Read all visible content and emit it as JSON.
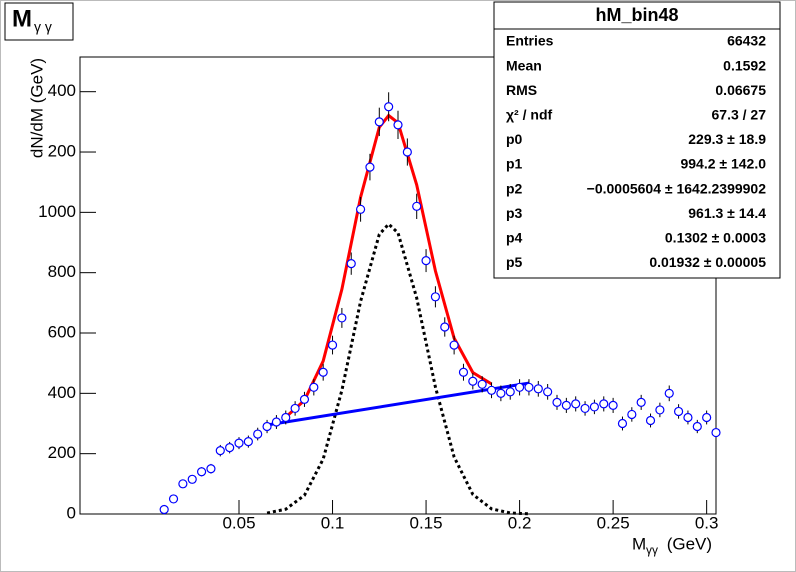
{
  "chart_data": {
    "type": "errorbar",
    "title": "M",
    "title_sub": "γ γ",
    "xlabel": "M",
    "xlabel_sub": "γγ",
    "xlabel_unit": " (GeV)",
    "ylabel": "dN/dM (GeV)",
    "xlim": [
      -0.035,
      0.305
    ],
    "ylim": [
      0,
      1515
    ],
    "xticks": [
      0.05,
      0.1,
      0.15,
      0.2,
      0.25,
      0.3
    ],
    "yticks": [
      0,
      200,
      400,
      600,
      800,
      1000,
      {
        "value": 1200,
        "label": "200"
      },
      {
        "value": 1400,
        "label": "400"
      }
    ],
    "x": [
      0.01,
      0.015,
      0.02,
      0.025,
      0.03,
      0.035,
      0.04,
      0.045,
      0.05,
      0.055,
      0.06,
      0.065,
      0.07,
      0.075,
      0.08,
      0.085,
      0.09,
      0.095,
      0.1,
      0.105,
      0.11,
      0.115,
      0.12,
      0.125,
      0.13,
      0.135,
      0.14,
      0.145,
      0.15,
      0.155,
      0.16,
      0.165,
      0.17,
      0.175,
      0.18,
      0.185,
      0.19,
      0.195,
      0.2,
      0.205,
      0.21,
      0.215,
      0.22,
      0.225,
      0.23,
      0.235,
      0.24,
      0.245,
      0.25,
      0.255,
      0.26,
      0.265,
      0.27,
      0.275,
      0.28,
      0.285,
      0.29,
      0.295,
      0.3,
      0.305
    ],
    "values": [
      15,
      50,
      100,
      115,
      140,
      150,
      210,
      220,
      235,
      240,
      265,
      290,
      305,
      320,
      350,
      380,
      420,
      470,
      560,
      650,
      830,
      1010,
      1150,
      1300,
      1350,
      1290,
      1200,
      1020,
      840,
      720,
      620,
      560,
      470,
      440,
      430,
      410,
      400,
      405,
      420,
      420,
      415,
      405,
      370,
      360,
      365,
      350,
      355,
      365,
      360,
      300,
      330,
      370,
      310,
      345,
      400,
      340,
      320,
      290,
      320,
      270
    ],
    "errors": [
      5,
      9,
      13,
      14,
      15,
      16,
      19,
      19,
      20,
      20,
      21,
      22,
      23,
      23,
      24,
      25,
      27,
      28,
      31,
      33,
      37,
      41,
      44,
      47,
      48,
      47,
      45,
      42,
      38,
      35,
      32,
      31,
      28,
      27,
      27,
      26,
      26,
      26,
      27,
      27,
      26,
      26,
      25,
      25,
      25,
      24,
      24,
      25,
      25,
      23,
      24,
      25,
      23,
      24,
      26,
      24,
      23,
      22,
      23,
      21
    ],
    "color": "#0000ff",
    "curves": [
      {
        "color": "#000000",
        "dashed": true,
        "x": [
          0.065,
          0.075,
          0.085,
          0.095,
          0.105,
          0.115,
          0.125,
          0.13,
          0.135,
          0.145,
          0.155,
          0.165,
          0.175,
          0.185,
          0.195,
          0.205
        ],
        "values": [
          3.2,
          16,
          62,
          182,
          410,
          705,
          927,
          961,
          932,
          716,
          421,
          189,
          65,
          17,
          3.4,
          0.5
        ]
      },
      {
        "color": "#0000ff",
        "dashed": false,
        "x": [
          0.065,
          0.205
        ],
        "values": [
          295,
          434
        ]
      },
      {
        "color": "#ff0000",
        "dashed": false,
        "x": [
          0.075,
          0.085,
          0.095,
          0.105,
          0.115,
          0.125,
          0.13,
          0.135,
          0.145,
          0.155,
          0.165,
          0.175,
          0.185
        ],
        "values": [
          321,
          377,
          507,
          745,
          1050,
          1282,
          1321,
          1297,
          1091,
          806,
          583,
          469,
          431
        ]
      }
    ],
    "stats": {
      "title": "hM_bin48",
      "rows": [
        [
          "Entries",
          "66432"
        ],
        [
          "Mean",
          "0.1592"
        ],
        [
          "RMS",
          "0.06675"
        ],
        [
          "χ² / ndf",
          "67.3 / 27"
        ],
        [
          "p0",
          "229.3 ± 18.9"
        ],
        [
          "p1",
          "994.2 ± 142.0"
        ],
        [
          "p2",
          "−0.0005604 ± 1642.2399902"
        ],
        [
          "p3",
          "961.3 ± 14.4"
        ],
        [
          "p4",
          "0.1302 ± 0.0003"
        ],
        [
          "p5",
          "0.01932 ± 0.00005"
        ]
      ]
    }
  }
}
